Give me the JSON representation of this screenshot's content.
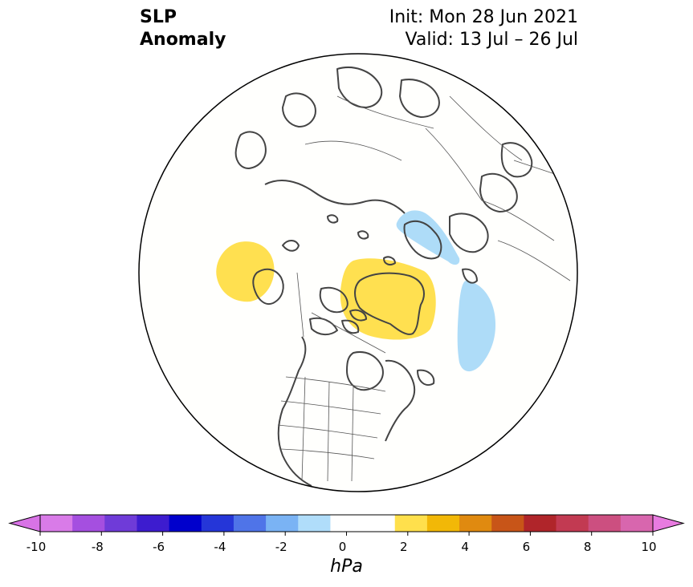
{
  "title": {
    "left_line1": "SLP",
    "left_line2": "Anomaly",
    "init": "Init: Mon 28 Jun 2021",
    "valid": "Valid: 13 Jul – 26 Jul"
  },
  "map": {
    "projection": "north-polar-stereographic",
    "anomaly_regions": [
      {
        "name": "north-pacific-positive",
        "level": "1 to 2 hPa",
        "color": "#ffe050"
      },
      {
        "name": "greenland-positive",
        "level": "1 to 2 hPa",
        "color": "#ffe050"
      },
      {
        "name": "scandinavia-negative",
        "level": "-2 to -1 hPa",
        "color": "#aedcf8"
      },
      {
        "name": "northeast-atlantic-negative",
        "level": "-2 to -1 hPa",
        "color": "#aedcf8"
      }
    ]
  },
  "colorbar": {
    "unit": "hPa",
    "ticks": [
      "-10",
      "-8",
      "-6",
      "-4",
      "-2",
      "0",
      "2",
      "4",
      "6",
      "8",
      "10"
    ],
    "bin_colors": [
      "#d97be8",
      "#a54fe0",
      "#6f3bd8",
      "#3d1ccf",
      "#0000cc",
      "#2536d8",
      "#4f74e8",
      "#7ab3f4",
      "#b0ddfa",
      "#ffffff",
      "#ffffff",
      "#ffe04c",
      "#f2b807",
      "#e08a10",
      "#c85518",
      "#b0252a",
      "#c23a52",
      "#cc4f80",
      "#d866ae"
    ],
    "extend_low_color": "#d873e6",
    "extend_high_color": "#e87be0"
  }
}
